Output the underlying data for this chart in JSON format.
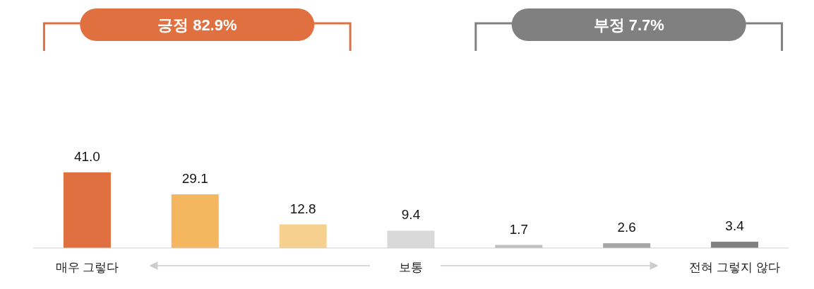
{
  "chart_data": {
    "type": "bar",
    "categories": [
      "매우 그렇다",
      null,
      null,
      "보통",
      null,
      null,
      "전혀 그렇지 않다"
    ],
    "values": [
      41.0,
      29.1,
      12.8,
      9.4,
      1.7,
      2.6,
      3.4
    ],
    "value_labels": [
      "41.0",
      "29.1",
      "12.8",
      "9.4",
      "1.7",
      "2.6",
      "3.4"
    ],
    "colors": [
      "#e07040",
      "#f5b660",
      "#f5d08e",
      "#d9d9d9",
      "#c0c0c0",
      "#a6a6a6",
      "#808080"
    ],
    "annotations": [
      "긍정 82.9%",
      "부정 7.7%"
    ]
  }
}
